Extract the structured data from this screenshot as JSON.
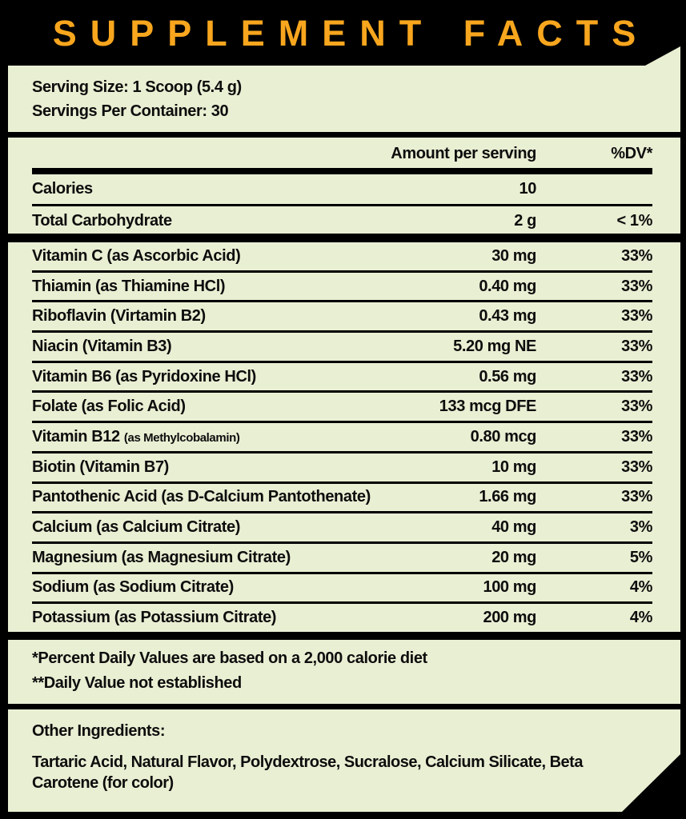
{
  "title": "SUPPLEMENT FACTS",
  "serving": {
    "size": "Serving Size: 1 Scoop (5.4 g)",
    "per_container": "Servings Per Container: 30"
  },
  "table": {
    "col_amount": "Amount per serving",
    "col_dv": "%DV*",
    "macro_rows": [
      {
        "label": "Calories",
        "amount": "10",
        "dv": ""
      },
      {
        "label": "Total Carbohydrate",
        "amount": "2 g",
        "dv": "< 1%"
      }
    ],
    "nutrient_rows": [
      {
        "label": "Vitamin C (as Ascorbic Acid)",
        "amount": "30 mg",
        "dv": "33%"
      },
      {
        "label": "Thiamin (as Thiamine HCl)",
        "amount": "0.40 mg",
        "dv": "33%"
      },
      {
        "label": "Riboflavin (Virtamin B2)",
        "amount": "0.43 mg",
        "dv": "33%"
      },
      {
        "label": "Niacin (Vitamin B3)",
        "amount": "5.20 mg NE",
        "dv": "33%"
      },
      {
        "label": "Vitamin B6 (as Pyridoxine HCl)",
        "amount": "0.56 mg",
        "dv": "33%"
      },
      {
        "label": "Folate (as Folic Acid)",
        "amount": "133 mcg DFE",
        "dv": "33%"
      },
      {
        "label": "Vitamin B12",
        "label_small": "(as Methylcobalamin)",
        "amount": "0.80 mcg",
        "dv": "33%"
      },
      {
        "label": "Biotin (Vitamin B7)",
        "amount": "10 mg",
        "dv": "33%"
      },
      {
        "label": "Pantothenic Acid (as D-Calcium Pantothenate)",
        "amount": "1.66 mg",
        "dv": "33%"
      },
      {
        "label": "Calcium (as Calcium Citrate)",
        "amount": "40 mg",
        "dv": "3%"
      },
      {
        "label": "Magnesium (as Magnesium Citrate)",
        "amount": "20 mg",
        "dv": "5%"
      },
      {
        "label": "Sodium (as Sodium Citrate)",
        "amount": "100 mg",
        "dv": "4%"
      },
      {
        "label": "Potassium (as Potassium Citrate)",
        "amount": "200 mg",
        "dv": "4%"
      }
    ]
  },
  "footnotes": {
    "dv_note": "*Percent Daily Values are based on a 2,000 calorie diet",
    "dv_not_established": "**Daily Value not established"
  },
  "other_ingredients": {
    "heading": "Other Ingredients:",
    "text": "Tartaric Acid, Natural Flavor, Polydextrose, Sucralose, Calcium Silicate, Beta Carotene (for color)"
  },
  "colors": {
    "accent_orange": "#F8A61E",
    "panel_cream": "#E9EFD3",
    "background": "#000000",
    "text": "#0d0d0d"
  }
}
